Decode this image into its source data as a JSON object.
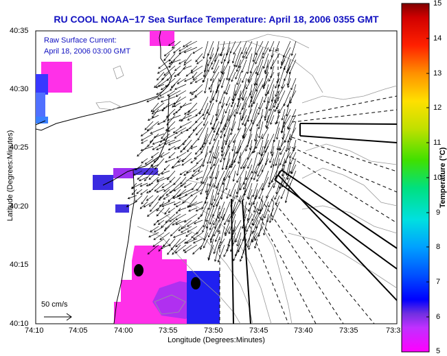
{
  "title": "RU COOL  NOAA−17  Sea Surface Temperature:  April 18, 2006 0355 GMT",
  "annotation": {
    "line1": "Raw Surface Current:",
    "line2": "April 18, 2006 03:00 GMT"
  },
  "x_axis": {
    "label": "Longitude (Degrees:Minutes)",
    "ticks": [
      "74:10",
      "74:05",
      "74:00",
      "73:55",
      "73:50",
      "73:45",
      "73:40",
      "73:35",
      "73:3"
    ]
  },
  "y_axis": {
    "label": "Latitude (Degrees:Minutes)",
    "ticks": [
      "40:35",
      "40:30",
      "40:25",
      "40:20",
      "40:15",
      "40:10"
    ]
  },
  "colorbar": {
    "label": "Temperature (°C)",
    "ticks": [
      "15",
      "14",
      "13",
      "12",
      "11",
      "10",
      "9",
      "8",
      "7",
      "6",
      "5"
    ],
    "min": 5,
    "max": 15
  },
  "scale_label": "50 cm/s",
  "colors": {
    "title": "#1010c0",
    "land": "#ffffff",
    "current_vectors": "#000000"
  },
  "chart_data": {
    "type": "heatmap",
    "title": "RU COOL  NOAA−17  Sea Surface Temperature:  April 18, 2006 0355 GMT",
    "xlabel": "Longitude (Degrees:Minutes)",
    "ylabel": "Latitude (Degrees:Minutes)",
    "colorbar_label": "Temperature (°C)",
    "colorbar_range": [
      5,
      15
    ],
    "overlay": "surface current vectors"
  }
}
